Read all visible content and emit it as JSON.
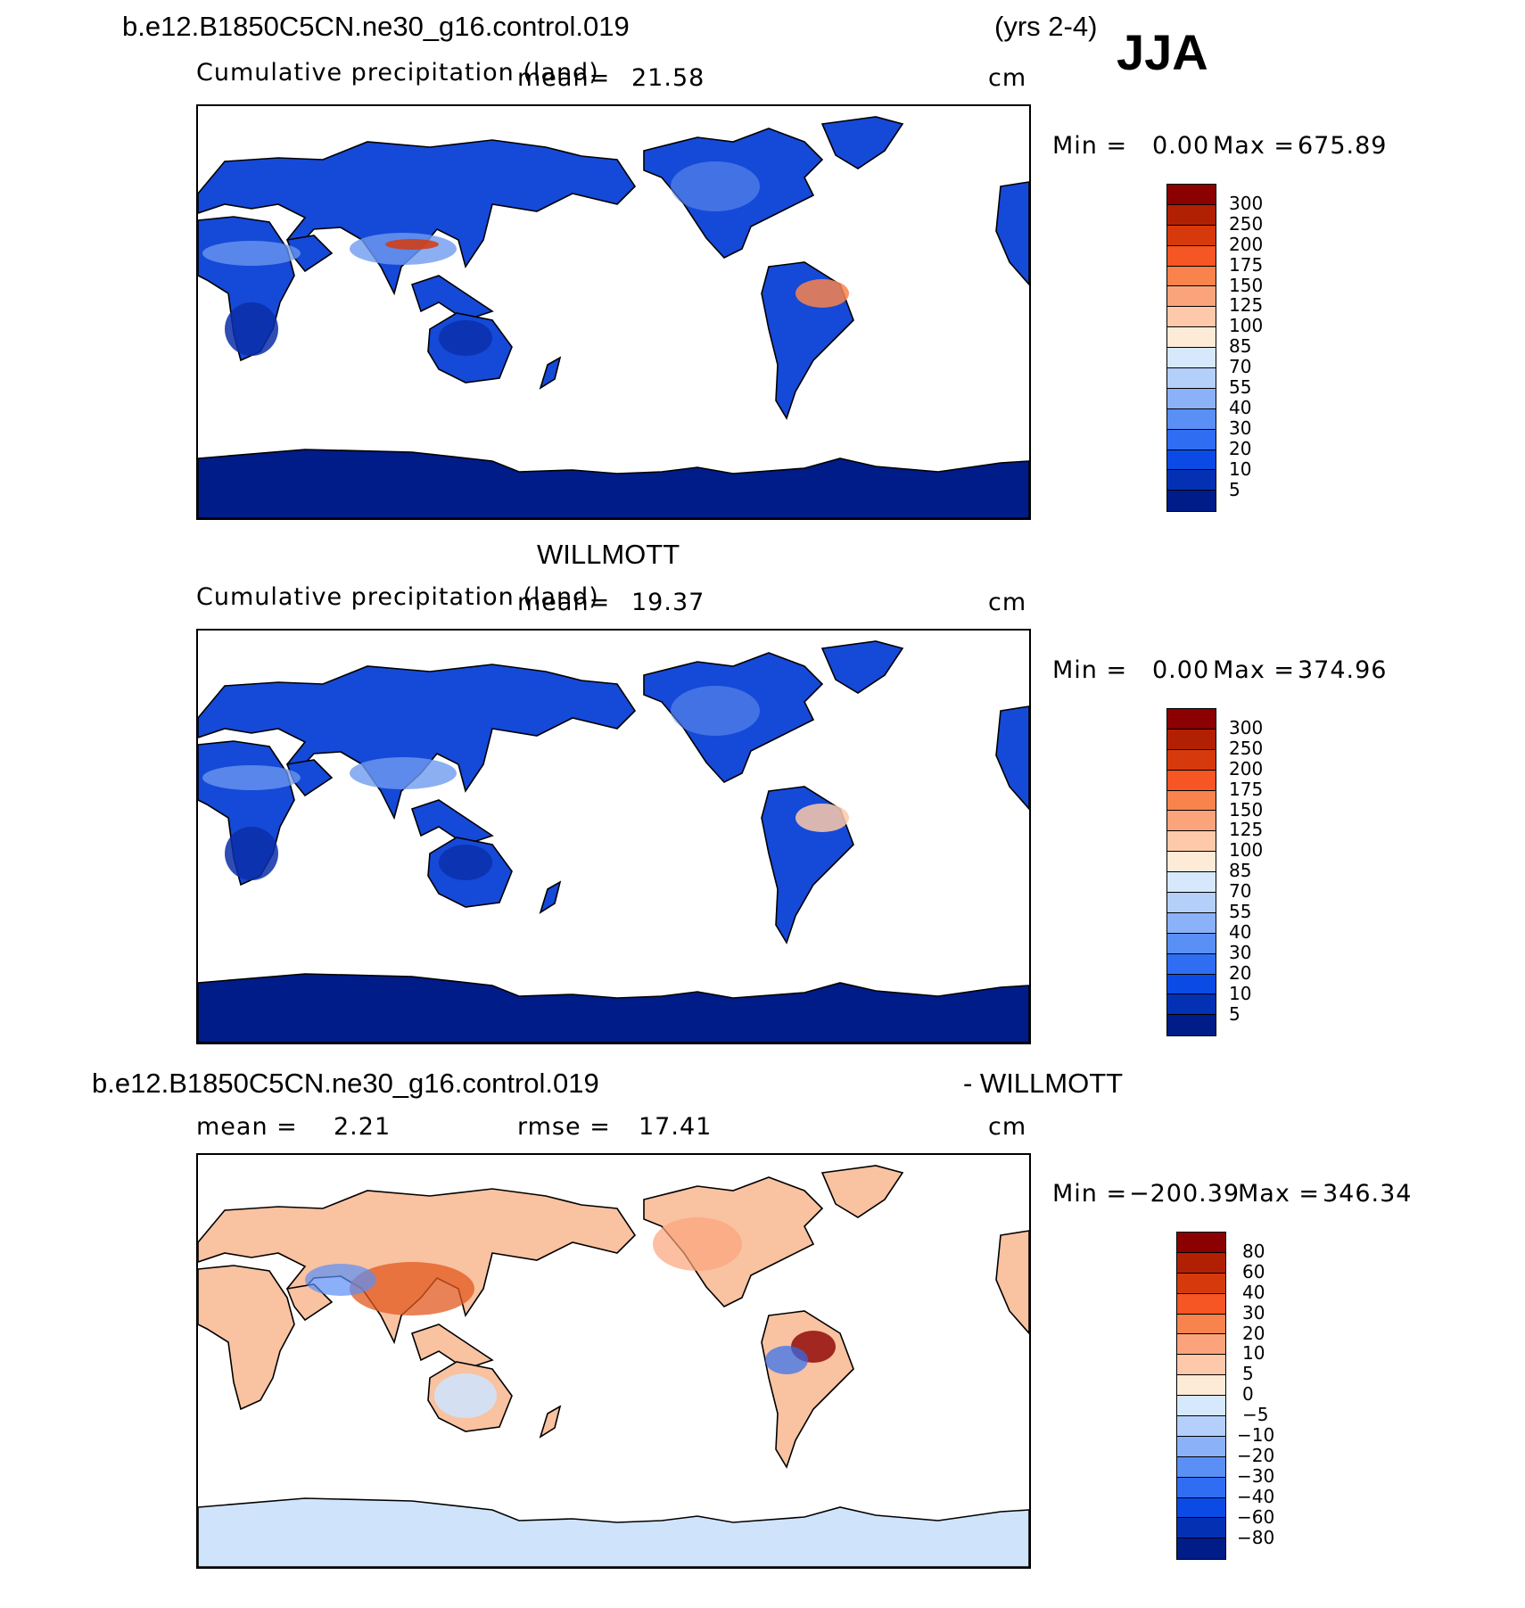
{
  "header": {
    "case_name": "b.e12.B1850C5CN.ne30_g16.control.019",
    "years": "(yrs 2-4)",
    "season": "JJA"
  },
  "panels": [
    {
      "id": "model",
      "variable": "Cumulative precipitation (land)",
      "mean_label": "mean=",
      "mean_value": "21.58",
      "units": "cm",
      "minmax": {
        "min_label": "Min =",
        "min_value": "0.00",
        "max_label": "Max =",
        "max_value": "675.89"
      }
    },
    {
      "id": "obs",
      "title": "WILLMOTT",
      "variable": "Cumulative precipitation (land)",
      "mean_label": "mean=",
      "mean_value": "19.37",
      "units": "cm",
      "minmax": {
        "min_label": "Min =",
        "min_value": "0.00",
        "max_label": "Max =",
        "max_value": "374.96"
      }
    },
    {
      "id": "diff",
      "title_left": "b.e12.B1850C5CN.ne30_g16.control.019",
      "title_right": "- WILLMOTT",
      "mean_label": "mean =",
      "mean_value": "2.21",
      "rmse_label": "rmse =",
      "rmse_value": "17.41",
      "units": "cm",
      "minmax": {
        "min_label": "Min =",
        "min_value": "−200.39",
        "max_label": "Max =",
        "max_value": "346.34"
      }
    }
  ],
  "colorbars": {
    "abs": {
      "ticks": [
        "300",
        "250",
        "200",
        "175",
        "150",
        "125",
        "100",
        "85",
        "70",
        "55",
        "40",
        "30",
        "20",
        "10",
        "5"
      ],
      "colors": [
        "#8b0000",
        "#b22004",
        "#d63a0c",
        "#f65524",
        "#f9834d",
        "#fba47b",
        "#fdc9aa",
        "#fdebd8",
        "#d6e8fb",
        "#b3cffa",
        "#8bb2f8",
        "#5a8ff6",
        "#2f6ef2",
        "#0b4ae4",
        "#0431b3",
        "#001c88"
      ]
    },
    "diff": {
      "ticks": [
        "80",
        "60",
        "40",
        "30",
        "20",
        "10",
        "5",
        "0",
        "−5",
        "−10",
        "−20",
        "−30",
        "−40",
        "−60",
        "−80"
      ],
      "colors": [
        "#8b0000",
        "#b22004",
        "#d63a0c",
        "#f65524",
        "#f9834d",
        "#fba47b",
        "#fdc9aa",
        "#fdebd8",
        "#d6e8fb",
        "#b3cffa",
        "#8bb2f8",
        "#5a8ff6",
        "#2f6ef2",
        "#0b4ae4",
        "#0431b3",
        "#001c88"
      ]
    }
  },
  "map_colors": {
    "land_deep": "#0a2ea8",
    "land_mid": "#1549d8",
    "land_light": "#6f9bf0",
    "antarctica": "#001c88",
    "diff_pos": "#f9c2a0",
    "diff_neg": "#cfe3fb"
  }
}
